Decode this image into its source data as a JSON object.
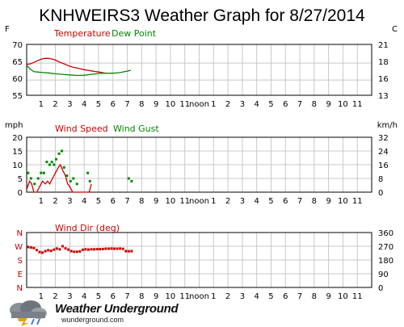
{
  "title": "KNHWEIRS3 Weather Graph for 8/27/2014",
  "hour_labels": [
    "1",
    "2",
    "3",
    "4",
    "5",
    "6",
    "7",
    "8",
    "9",
    "10",
    "11",
    "noon",
    "1",
    "2",
    "3",
    "4",
    "5",
    "6",
    "7",
    "8",
    "9",
    "10",
    "11"
  ],
  "branding": {
    "name": "Weather Underground",
    "url": "wunderground.com",
    "logo": "wunderground-cloud-logo"
  },
  "colors": {
    "temperature": "#cc0000",
    "dew_point": "#008800",
    "wind_speed": "#cc0000",
    "wind_gust": "#008800",
    "wind_dir": "#cc0000",
    "grid": "#c8c8c8"
  },
  "chart_data": [
    {
      "type": "line",
      "legend": [
        "Temperature",
        "Dew Point"
      ],
      "left_unit": "F",
      "right_unit": "C",
      "left_ticks": [
        "70",
        "65",
        "60",
        "55"
      ],
      "right_ticks": [
        "21",
        "18",
        "16",
        "13"
      ],
      "ylim": [
        55,
        72.5
      ],
      "xlim": [
        0,
        24
      ],
      "grid": true,
      "series": [
        {
          "name": "Temperature",
          "x": [
            0,
            0.25,
            0.5,
            0.75,
            1.0,
            1.25,
            1.5,
            1.75,
            2.0,
            2.25,
            2.5,
            2.75,
            3.0,
            3.25,
            3.5,
            3.75,
            4.0,
            4.25,
            4.5,
            4.75,
            5.0,
            5.25,
            5.5,
            5.75,
            6.0
          ],
          "y": [
            65.6,
            65.8,
            66.3,
            66.9,
            67.4,
            67.7,
            67.7,
            67.5,
            67.1,
            66.5,
            66.0,
            65.5,
            65.0,
            64.6,
            64.4,
            64.1,
            63.8,
            63.6,
            63.4,
            63.2,
            63.0,
            62.8,
            62.6,
            62.6,
            62.6
          ]
        },
        {
          "name": "Dew Point",
          "x": [
            0,
            0.25,
            0.5,
            0.75,
            1.0,
            1.5,
            2.0,
            2.5,
            3.0,
            3.5,
            4.0,
            4.5,
            5.0,
            5.5,
            6.0,
            6.5,
            7.0,
            7.25
          ],
          "y": [
            65.3,
            64.0,
            63.1,
            63.0,
            62.9,
            62.7,
            62.4,
            62.2,
            62.0,
            61.8,
            61.9,
            62.2,
            62.5,
            62.6,
            62.6,
            62.8,
            63.3,
            63.6
          ]
        }
      ]
    },
    {
      "type": "line",
      "legend": [
        "Wind Speed",
        "Wind Gust"
      ],
      "left_unit": "mph",
      "right_unit": "km/h",
      "left_ticks": [
        "20",
        "15",
        "10",
        "5",
        "0"
      ],
      "right_ticks": [
        "32",
        "24",
        "16",
        "8",
        "0"
      ],
      "ylim": [
        0,
        20
      ],
      "xlim": [
        0,
        24
      ],
      "grid": true,
      "series": [
        {
          "name": "Wind Speed",
          "x": [
            0,
            0.2,
            0.35,
            0.5,
            0.7,
            0.9,
            1.1,
            1.3,
            1.45,
            1.6,
            1.8,
            2.0,
            2.2,
            2.35,
            2.5,
            2.7,
            2.85,
            3.0,
            3.2,
            3.4,
            3.6,
            3.8,
            4.0,
            4.2,
            4.35,
            4.5
          ],
          "y": [
            1,
            4,
            3,
            0,
            0,
            2,
            4,
            3,
            4,
            3,
            5,
            7,
            9,
            10,
            8,
            6,
            3,
            2,
            0,
            0,
            0,
            0,
            0,
            0,
            0,
            3
          ]
        },
        {
          "name": "Wind Gust",
          "type": "scatter",
          "x": [
            0.1,
            0.3,
            0.55,
            0.8,
            1.0,
            1.2,
            1.4,
            1.6,
            1.75,
            1.9,
            2.05,
            2.25,
            2.45,
            2.6,
            2.8,
            3.05,
            3.25,
            3.5,
            4.25,
            4.4,
            7.1,
            7.3
          ],
          "y": [
            7,
            5,
            3,
            5,
            7,
            7,
            11,
            10,
            11,
            10,
            12,
            14,
            15,
            9,
            6,
            4,
            5,
            3,
            7,
            4,
            5,
            4
          ]
        }
      ]
    },
    {
      "type": "scatter",
      "legend": [
        "Wind Dir (deg)"
      ],
      "left_ticks": [
        "N",
        "W",
        "S",
        "E",
        "N"
      ],
      "right_ticks": [
        "360",
        "270",
        "180",
        "90",
        "0"
      ],
      "ylim": [
        0,
        360
      ],
      "xlim": [
        0,
        24
      ],
      "grid": true,
      "series": [
        {
          "name": "Wind Dir (deg)",
          "x": [
            0.1,
            0.3,
            0.5,
            0.7,
            0.9,
            1.1,
            1.3,
            1.5,
            1.7,
            1.9,
            2.1,
            2.3,
            2.5,
            2.7,
            2.9,
            3.1,
            3.3,
            3.5,
            3.7,
            3.9,
            4.1,
            4.3,
            4.5,
            4.7,
            4.9,
            5.1,
            5.3,
            5.5,
            5.7,
            5.9,
            6.1,
            6.3,
            6.5,
            6.7,
            6.9,
            7.1,
            7.3
          ],
          "y": [
            265,
            262,
            258,
            245,
            232,
            228,
            238,
            244,
            240,
            248,
            255,
            250,
            270,
            256,
            248,
            238,
            234,
            234,
            236,
            247,
            250,
            248,
            250,
            250,
            251,
            251,
            252,
            254,
            254,
            255,
            254,
            254,
            255,
            253,
            238,
            237,
            238
          ]
        }
      ]
    }
  ]
}
